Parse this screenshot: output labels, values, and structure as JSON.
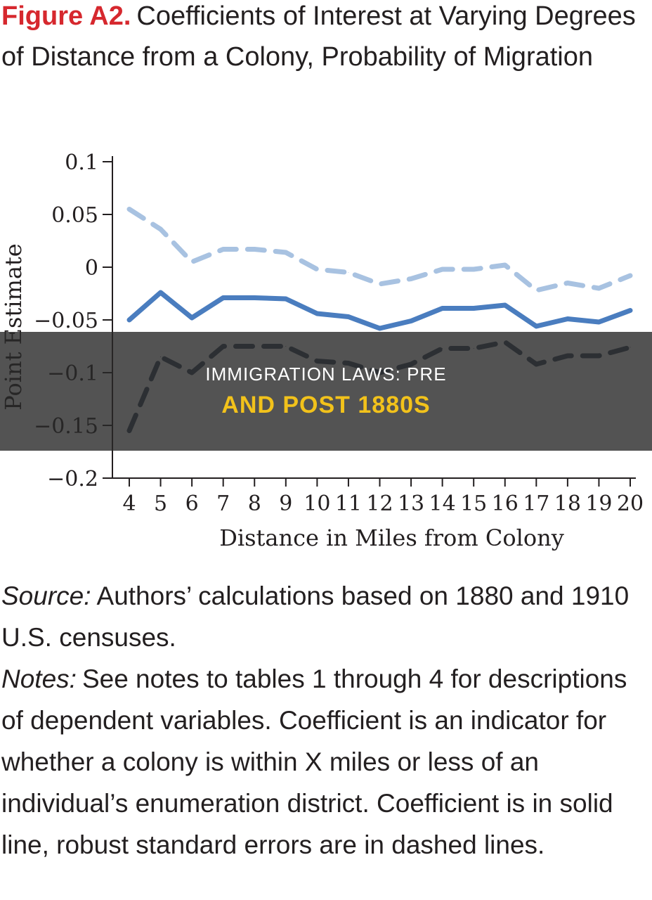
{
  "figure": {
    "label": "Figure A2.",
    "title": "Coefficients of Interest at Varying Degrees of Distance from a Colony, Probability of Migration"
  },
  "chart_data": {
    "type": "line",
    "xlabel": "Distance in Miles from Colony",
    "ylabel": "Point Estimate",
    "x": [
      4,
      5,
      6,
      7,
      8,
      9,
      10,
      11,
      12,
      13,
      14,
      15,
      16,
      17,
      18,
      19,
      20
    ],
    "y_ticks": [
      0.1,
      0.05,
      0,
      -0.05,
      -0.1,
      -0.15,
      -0.2
    ],
    "y_tick_labels": [
      "0.1",
      "0.05",
      "0",
      "−0.05",
      "−0.1",
      "−0.15",
      "−0.2"
    ],
    "ylim": [
      -0.2,
      0.1
    ],
    "grid": false,
    "series": [
      {
        "style": "dashed",
        "color": "#a8c2e1",
        "values": [
          0.055,
          0.036,
          0.005,
          0.017,
          0.017,
          0.014,
          -0.002,
          -0.005,
          -0.016,
          -0.011,
          -0.002,
          -0.002,
          0.002,
          -0.022,
          -0.015,
          -0.02,
          -0.008
        ]
      },
      {
        "style": "solid",
        "color": "#4a7dbf",
        "values": [
          -0.05,
          -0.024,
          -0.048,
          -0.029,
          -0.029,
          -0.03,
          -0.044,
          -0.047,
          -0.058,
          -0.051,
          -0.039,
          -0.039,
          -0.036,
          -0.056,
          -0.049,
          -0.052,
          -0.041
        ]
      },
      {
        "style": "dashed",
        "color": "#3c4b5e",
        "values": [
          -0.155,
          -0.085,
          -0.1,
          -0.075,
          -0.075,
          -0.075,
          -0.089,
          -0.091,
          -0.1,
          -0.092,
          -0.077,
          -0.077,
          -0.071,
          -0.092,
          -0.084,
          -0.084,
          -0.076
        ]
      }
    ]
  },
  "caption": {
    "source_label": "Source:",
    "source_text": "Authors’ calculations based on 1880 and 1910 U.S. censuses.",
    "notes_label": "Notes:",
    "notes_text": "See notes to tables 1 through 4 for descriptions of dependent variables. Coefficient is an indicator for whether a colony is within X miles or less of an individual’s enumeration district. Coefficient is in solid line, robust standard errors are in dashed lines."
  },
  "banner": {
    "line1": "IMMIGRATION LAWS: PRE",
    "line2": "AND POST 1880S"
  }
}
